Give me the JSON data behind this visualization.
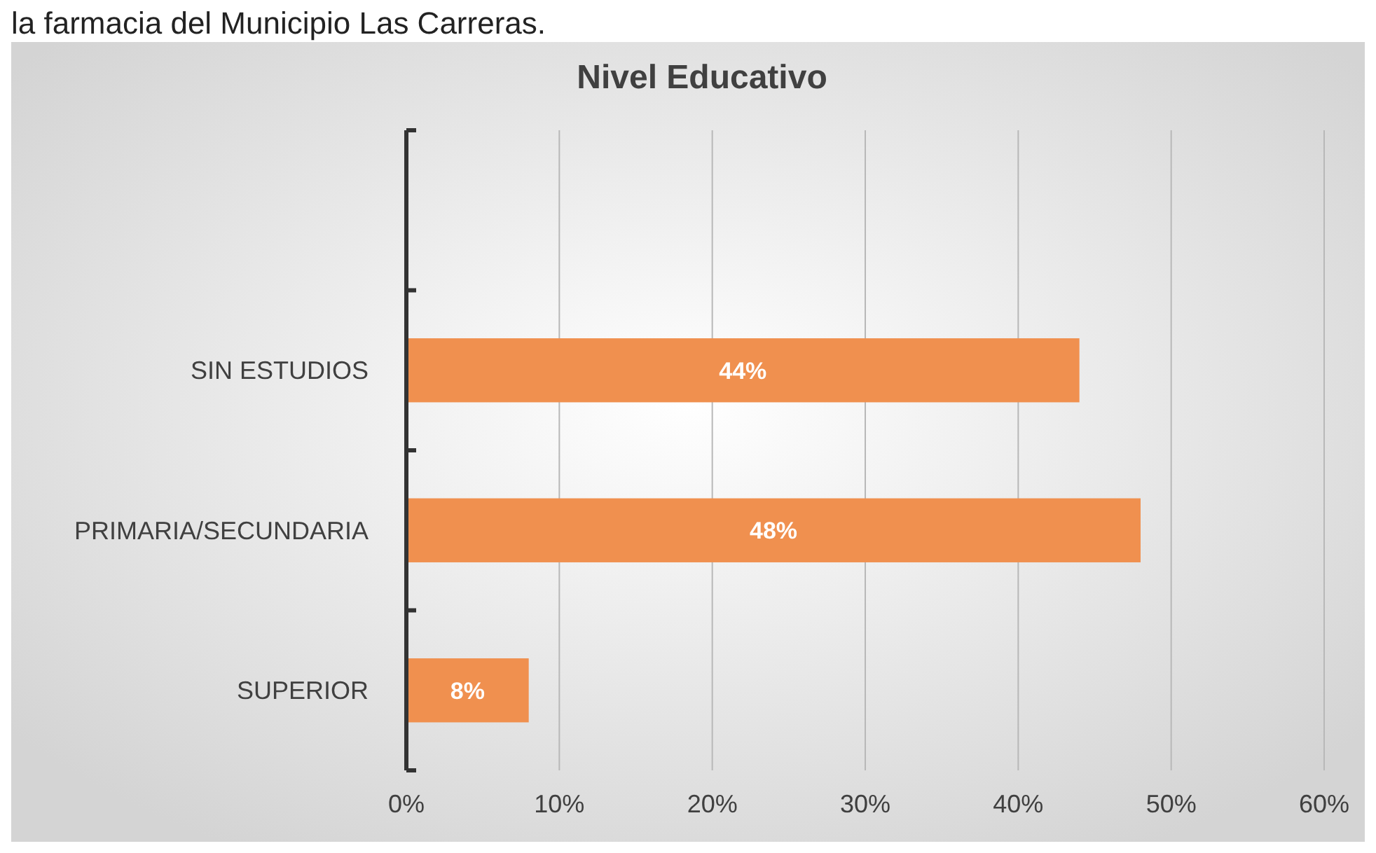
{
  "chart_data": {
    "type": "bar",
    "orientation": "horizontal",
    "title": "Nivel Educativo",
    "annotations": [
      "la farmacia del Municipio Las Carreras."
    ],
    "categories": [
      null,
      "SIN ESTUDIOS",
      "PRIMARIA/SECUNDARIA",
      "SUPERIOR"
    ],
    "values": [
      null,
      44,
      48,
      8
    ],
    "value_labels": [
      null,
      "44%",
      "48%",
      "8%"
    ],
    "color": "#f0904f",
    "xlim": [
      0,
      60
    ],
    "xticks": [
      {
        "value": 0,
        "label": "0%"
      },
      {
        "value": 10,
        "label": "10%"
      },
      {
        "value": 20,
        "label": "20%"
      },
      {
        "value": 30,
        "label": "30%"
      },
      {
        "value": 40,
        "label": "40%"
      },
      {
        "value": 50,
        "label": "50%"
      },
      {
        "value": 60,
        "label": "60%"
      }
    ],
    "grid": "x"
  }
}
